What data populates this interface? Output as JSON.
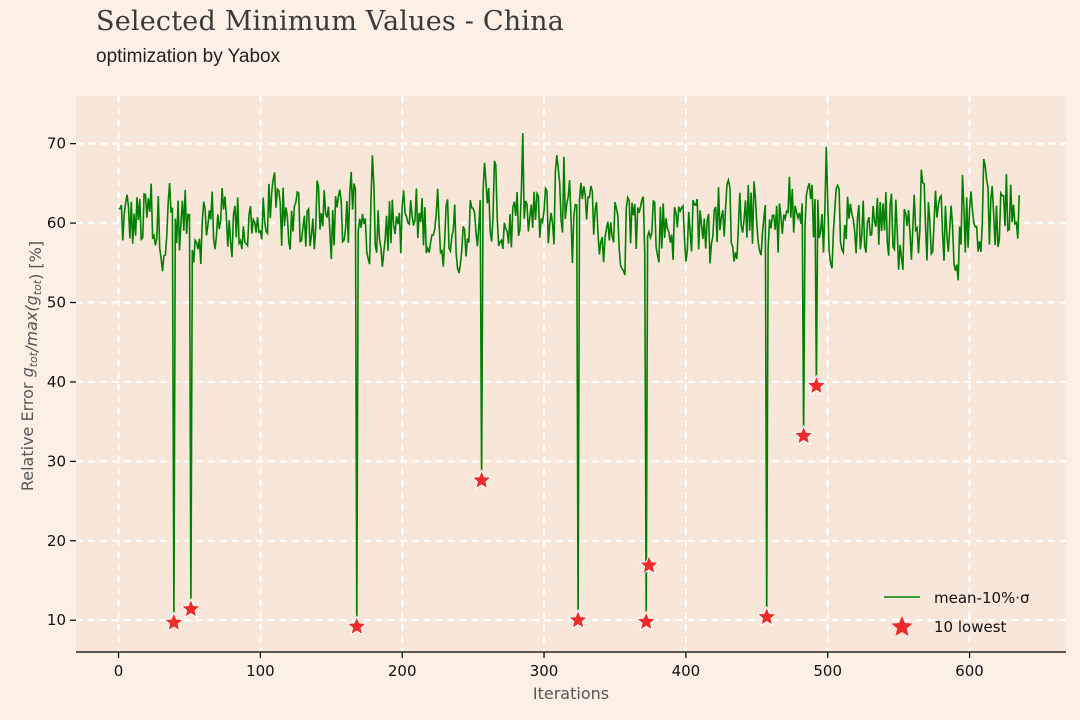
{
  "header": {
    "title": "Selected Minimum Values - China",
    "subtitle": "optimization by Yabox"
  },
  "colors": {
    "background": "#fcf0e5",
    "plot_background": "#f8e6d9",
    "line": "#008000",
    "marker": "#ee2b2b",
    "grid": "#ffffff"
  },
  "chart_data": {
    "type": "line",
    "title": "Selected Minimum Values - China",
    "subtitle": "optimization by Yabox",
    "xlabel": "Iterations",
    "ylabel": "Relative Error g_tot/max(g_tot) [%]",
    "xlim": [
      -30,
      668
    ],
    "ylim": [
      6,
      76
    ],
    "xticks": [
      0,
      100,
      200,
      300,
      400,
      500,
      600
    ],
    "yticks": [
      10,
      20,
      30,
      40,
      50,
      60,
      70
    ],
    "grid": true,
    "legend_position": "lower right",
    "series": [
      {
        "name": "mean-10%·σ",
        "kind": "line",
        "points_note": "noisy line fluctuating between ~48 and ~73 with deep dips to the lowest points"
      },
      {
        "name": "10 lowest",
        "kind": "scatter",
        "marker": "star",
        "x": [
          39,
          51,
          168,
          256,
          324,
          372,
          374,
          457,
          483,
          492
        ],
        "y": [
          9.7,
          11.4,
          9.2,
          27.6,
          10.0,
          9.8,
          16.9,
          10.4,
          33.2,
          39.5
        ]
      }
    ],
    "dips": [
      {
        "x": 39,
        "y": 9.7
      },
      {
        "x": 51,
        "y": 11.4
      },
      {
        "x": 168,
        "y": 9.2
      },
      {
        "x": 256,
        "y": 27.6
      },
      {
        "x": 324,
        "y": 10.0
      },
      {
        "x": 372,
        "y": 9.8
      },
      {
        "x": 457,
        "y": 10.4
      },
      {
        "x": 483,
        "y": 33.2
      },
      {
        "x": 492,
        "y": 39.5
      }
    ],
    "x_range": [
      0,
      635
    ]
  },
  "legend": {
    "line_label": "mean-10%·σ",
    "marker_label": "10 lowest"
  }
}
